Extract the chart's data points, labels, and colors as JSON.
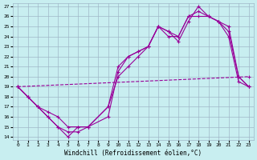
{
  "xlabel": "Windchill (Refroidissement éolien,°C)",
  "xlim_min": -0.5,
  "xlim_max": 23.5,
  "ylim_min": 13.7,
  "ylim_max": 27.3,
  "xticks": [
    0,
    1,
    2,
    3,
    4,
    5,
    6,
    7,
    8,
    9,
    10,
    11,
    12,
    13,
    14,
    15,
    16,
    17,
    18,
    19,
    20,
    21,
    22,
    23
  ],
  "yticks": [
    14,
    15,
    16,
    17,
    18,
    19,
    20,
    21,
    22,
    23,
    24,
    25,
    26,
    27
  ],
  "bg_color": "#c8eef0",
  "line_color": "#990099",
  "grid_color": "#a0b8c8",
  "line1_x": [
    0,
    1,
    2,
    3,
    4,
    5,
    6,
    7,
    9,
    10,
    11,
    12,
    13,
    14,
    15,
    16,
    17,
    18,
    19,
    20,
    21,
    22,
    23
  ],
  "line1_y": [
    19,
    18,
    17,
    16.5,
    16,
    15,
    15,
    15,
    17,
    20,
    21,
    22,
    23,
    25,
    24.5,
    23.5,
    25.5,
    27,
    26,
    25.5,
    25,
    20,
    19
  ],
  "line2_x": [
    0,
    1,
    2,
    3,
    4,
    5,
    6,
    7,
    9,
    10,
    11,
    12,
    13,
    14,
    15,
    16,
    17,
    18,
    19,
    20,
    21,
    22,
    23
  ],
  "line2_y": [
    19,
    18,
    17,
    16,
    15,
    14,
    15,
    15,
    16,
    20.5,
    22,
    22.5,
    23,
    25,
    24,
    24,
    26,
    26,
    26,
    25.5,
    24,
    19.5,
    19
  ],
  "line3_x": [
    0,
    1,
    2,
    3,
    4,
    5,
    6,
    7,
    9,
    10,
    11,
    12,
    13,
    14,
    15,
    16,
    17,
    18,
    19,
    20,
    21,
    22,
    23
  ],
  "line3_y": [
    19,
    18,
    17,
    16,
    15,
    14.5,
    14.5,
    15,
    17,
    21,
    22,
    22.5,
    23,
    25,
    24.5,
    24,
    26,
    26.5,
    26,
    25.5,
    24.5,
    20,
    19
  ],
  "line4_x": [
    0,
    23
  ],
  "line4_y": [
    19,
    20
  ]
}
